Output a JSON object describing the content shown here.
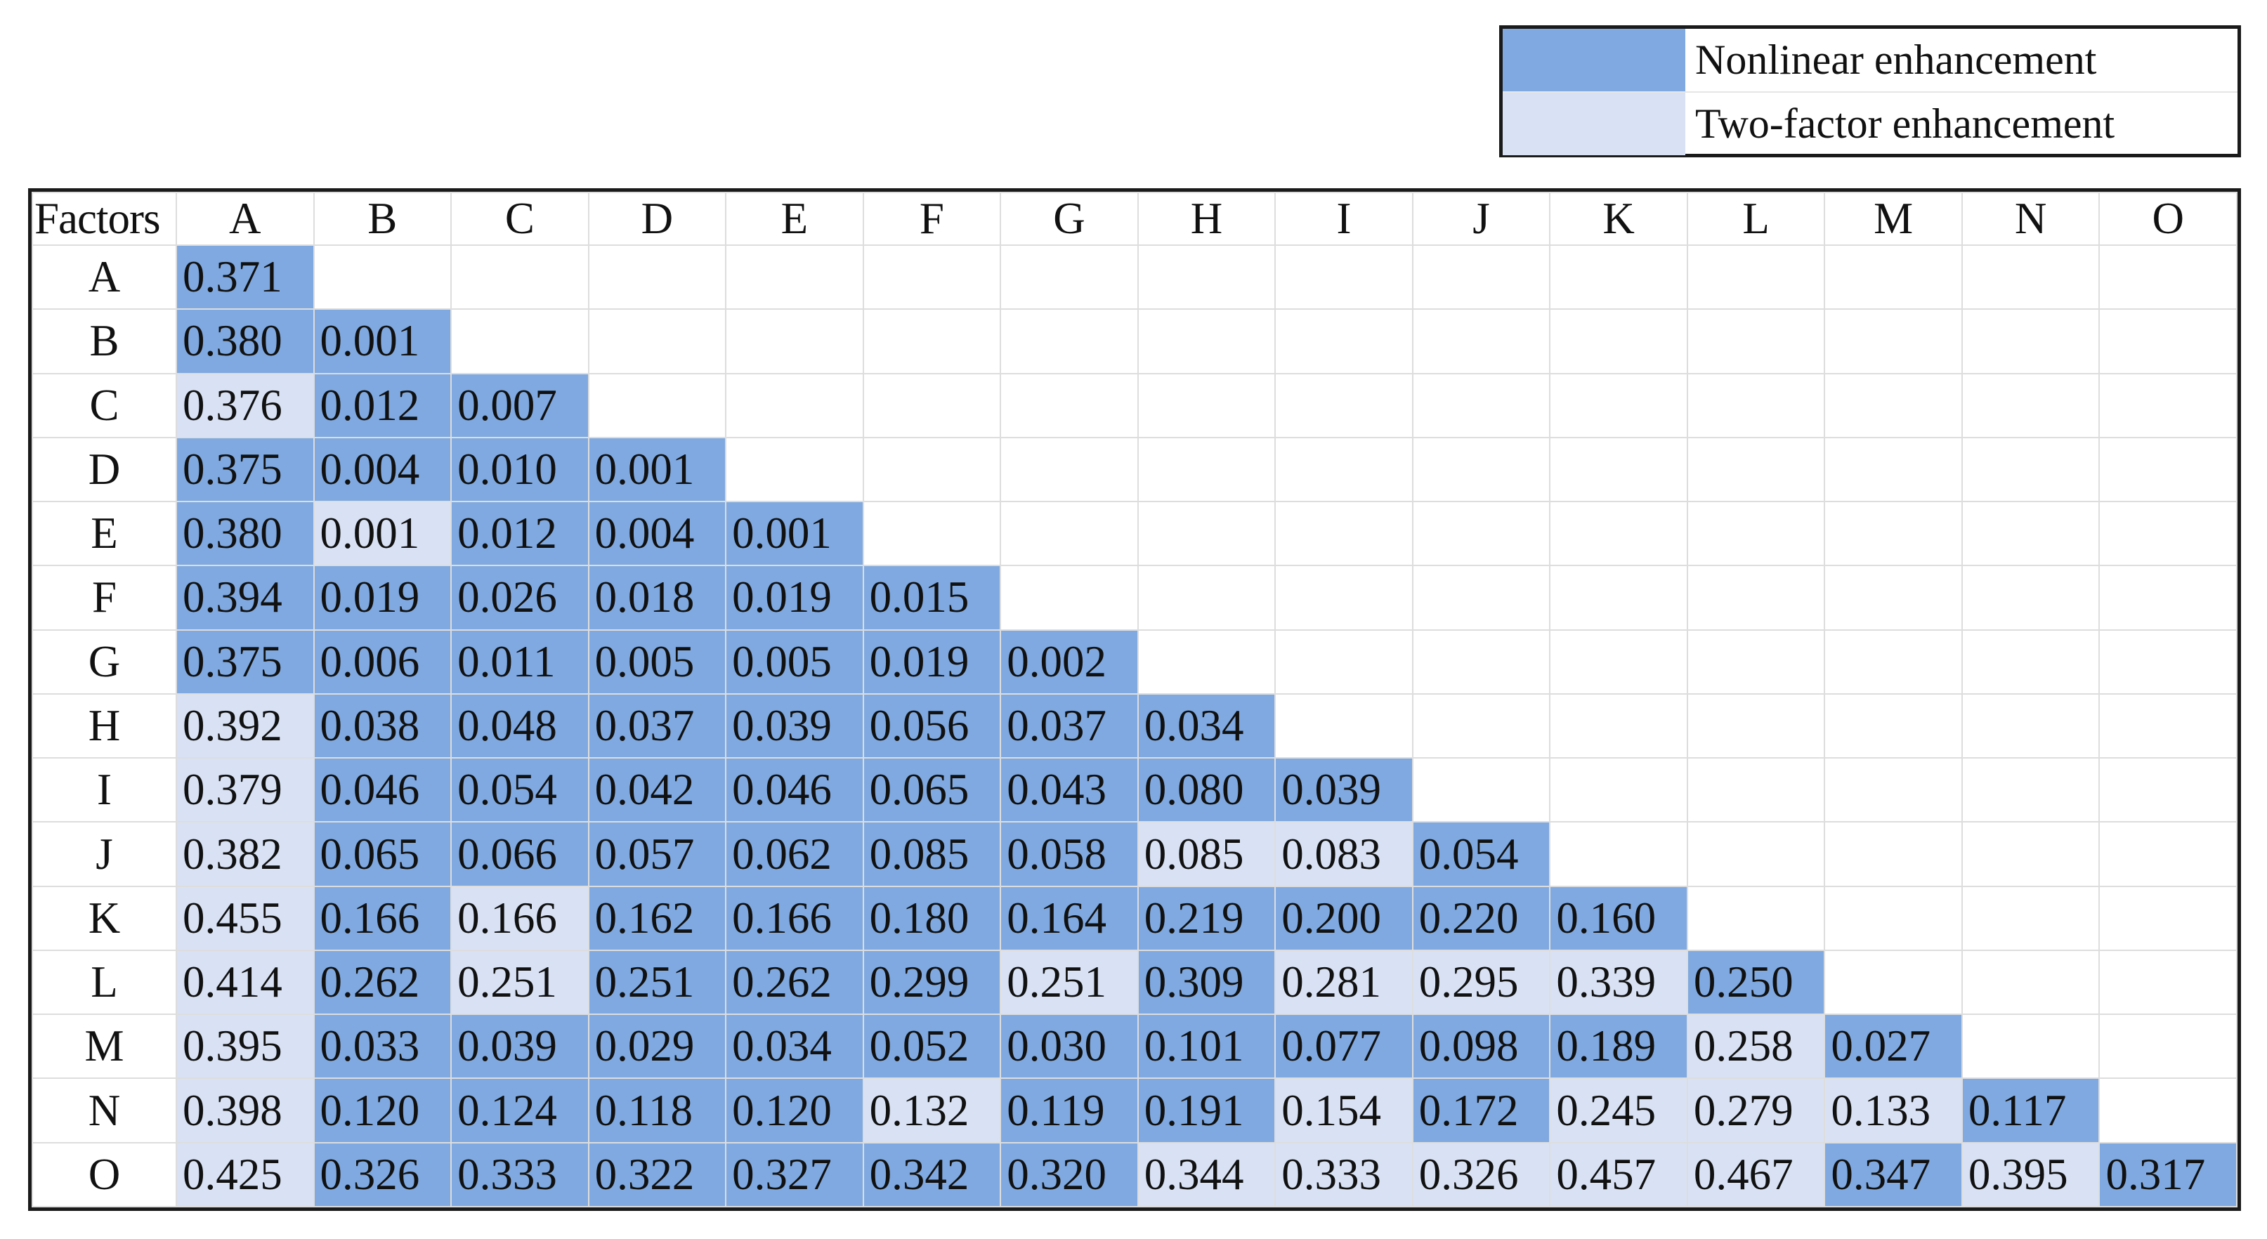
{
  "legend": {
    "items": [
      {
        "label": "Nonlinear enhancement",
        "color": "#7fa9e0",
        "code": "nl"
      },
      {
        "label": "Two-factor enhancement",
        "color": "#d9e2f4",
        "code": "tf"
      }
    ]
  },
  "chart_data": {
    "type": "table",
    "corner_label": "Factors",
    "factors": [
      "A",
      "B",
      "C",
      "D",
      "E",
      "F",
      "G",
      "H",
      "I",
      "J",
      "K",
      "L",
      "M",
      "N",
      "O"
    ],
    "values": [
      [
        "0.371"
      ],
      [
        "0.380",
        "0.001"
      ],
      [
        "0.376",
        "0.012",
        "0.007"
      ],
      [
        "0.375",
        "0.004",
        "0.010",
        "0.001"
      ],
      [
        "0.380",
        "0.001",
        "0.012",
        "0.004",
        "0.001"
      ],
      [
        "0.394",
        "0.019",
        "0.026",
        "0.018",
        "0.019",
        "0.015"
      ],
      [
        "0.375",
        "0.006",
        "0.011",
        "0.005",
        "0.005",
        "0.019",
        "0.002"
      ],
      [
        "0.392",
        "0.038",
        "0.048",
        "0.037",
        "0.039",
        "0.056",
        "0.037",
        "0.034"
      ],
      [
        "0.379",
        "0.046",
        "0.054",
        "0.042",
        "0.046",
        "0.065",
        "0.043",
        "0.080",
        "0.039"
      ],
      [
        "0.382",
        "0.065",
        "0.066",
        "0.057",
        "0.062",
        "0.085",
        "0.058",
        "0.085",
        "0.083",
        "0.054"
      ],
      [
        "0.455",
        "0.166",
        "0.166",
        "0.162",
        "0.166",
        "0.180",
        "0.164",
        "0.219",
        "0.200",
        "0.220",
        "0.160"
      ],
      [
        "0.414",
        "0.262",
        "0.251",
        "0.251",
        "0.262",
        "0.299",
        "0.251",
        "0.309",
        "0.281",
        "0.295",
        "0.339",
        "0.250"
      ],
      [
        "0.395",
        "0.033",
        "0.039",
        "0.029",
        "0.034",
        "0.052",
        "0.030",
        "0.101",
        "0.077",
        "0.098",
        "0.189",
        "0.258",
        "0.027"
      ],
      [
        "0.398",
        "0.120",
        "0.124",
        "0.118",
        "0.120",
        "0.132",
        "0.119",
        "0.191",
        "0.154",
        "0.172",
        "0.245",
        "0.279",
        "0.133",
        "0.117"
      ],
      [
        "0.425",
        "0.326",
        "0.333",
        "0.322",
        "0.327",
        "0.342",
        "0.320",
        "0.344",
        "0.333",
        "0.326",
        "0.457",
        "0.467",
        "0.347",
        "0.395",
        "0.317"
      ]
    ],
    "categories": [
      [
        "nl"
      ],
      [
        "nl",
        "nl"
      ],
      [
        "tf",
        "nl",
        "nl"
      ],
      [
        "nl",
        "nl",
        "nl",
        "nl"
      ],
      [
        "nl",
        "tf",
        "nl",
        "nl",
        "nl"
      ],
      [
        "nl",
        "nl",
        "nl",
        "nl",
        "nl",
        "nl"
      ],
      [
        "nl",
        "nl",
        "nl",
        "nl",
        "nl",
        "nl",
        "nl"
      ],
      [
        "tf",
        "nl",
        "nl",
        "nl",
        "nl",
        "nl",
        "nl",
        "nl"
      ],
      [
        "tf",
        "nl",
        "nl",
        "nl",
        "nl",
        "nl",
        "nl",
        "nl",
        "nl"
      ],
      [
        "tf",
        "nl",
        "nl",
        "nl",
        "nl",
        "nl",
        "nl",
        "tf",
        "tf",
        "nl"
      ],
      [
        "tf",
        "nl",
        "tf",
        "nl",
        "nl",
        "nl",
        "nl",
        "nl",
        "nl",
        "nl",
        "nl"
      ],
      [
        "tf",
        "nl",
        "tf",
        "nl",
        "nl",
        "nl",
        "tf",
        "nl",
        "tf",
        "tf",
        "tf",
        "nl"
      ],
      [
        "tf",
        "nl",
        "nl",
        "nl",
        "nl",
        "nl",
        "nl",
        "nl",
        "nl",
        "nl",
        "nl",
        "tf",
        "nl"
      ],
      [
        "tf",
        "nl",
        "nl",
        "nl",
        "nl",
        "tf",
        "nl",
        "nl",
        "tf",
        "nl",
        "tf",
        "tf",
        "tf",
        "nl"
      ],
      [
        "tf",
        "nl",
        "nl",
        "nl",
        "nl",
        "nl",
        "nl",
        "tf",
        "tf",
        "tf",
        "tf",
        "tf",
        "nl",
        "tf",
        "nl"
      ]
    ]
  }
}
